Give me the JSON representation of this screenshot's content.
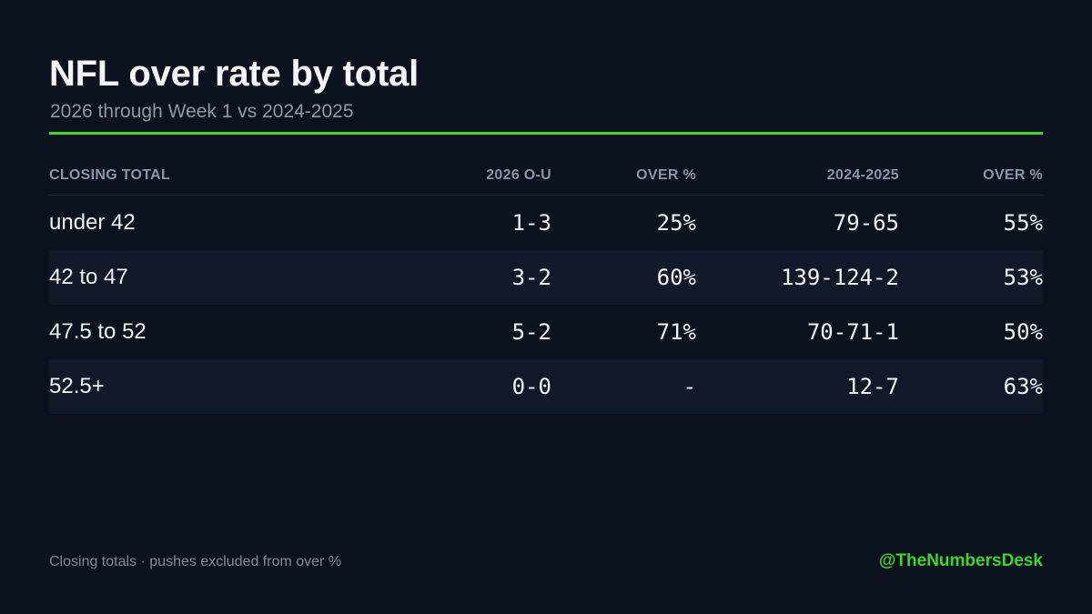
{
  "header": {
    "title": "NFL over rate by total",
    "subtitle": "2026 through Week 1 vs 2024-2025"
  },
  "colors": {
    "background": "#0b111d",
    "accent": "#3ed62c",
    "row_alt": "#111827",
    "muted_text": "#8b95a5"
  },
  "chart_data": {
    "type": "table",
    "columns": [
      "CLOSING TOTAL",
      "2026 O-U",
      "OVER %",
      "2024-2025",
      "OVER %"
    ],
    "rows": [
      [
        "under 42",
        "1-3",
        "25%",
        "79-65",
        "55%"
      ],
      [
        "42 to 47",
        "3-2",
        "60%",
        "139-124-2",
        "53%"
      ],
      [
        "47.5 to 52",
        "5-2",
        "71%",
        "70-71-1",
        "50%"
      ],
      [
        "52.5+",
        "0-0",
        "-",
        "12-7",
        "63%"
      ]
    ]
  },
  "footer": {
    "note": "Closing totals · pushes excluded from over %",
    "handle": "@TheNumbersDesk"
  }
}
